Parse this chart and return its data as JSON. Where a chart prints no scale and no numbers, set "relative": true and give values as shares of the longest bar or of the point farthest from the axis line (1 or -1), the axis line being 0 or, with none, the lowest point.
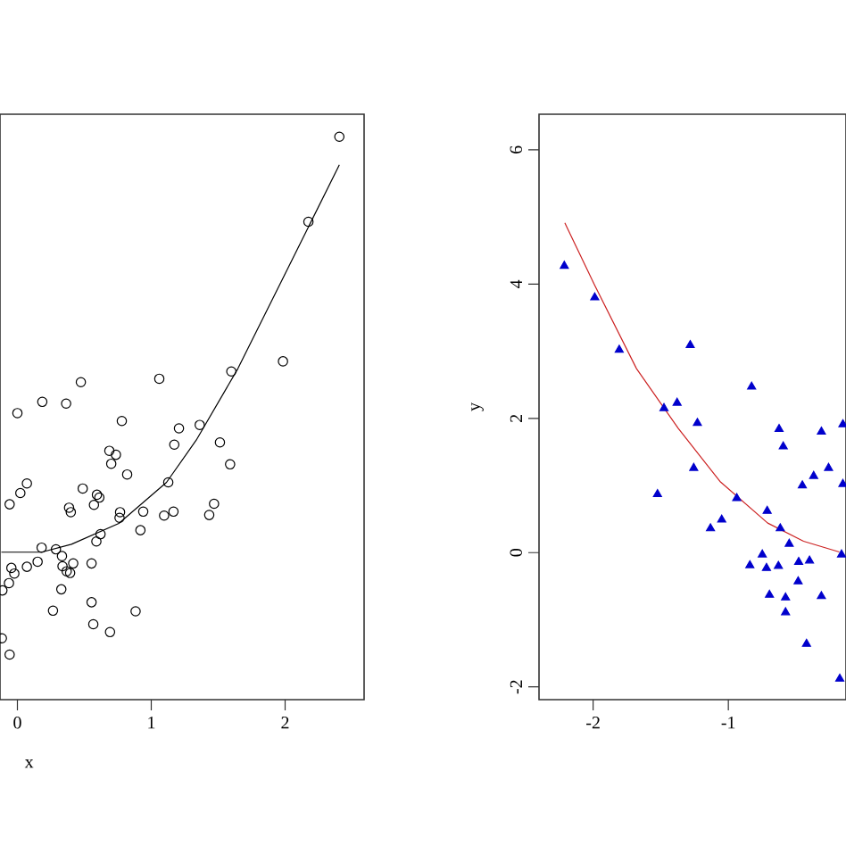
{
  "chart_data": [
    {
      "type": "scatter",
      "relative": true,
      "xlabel": "x",
      "xlim": [
        -0.13,
        2.59
      ],
      "xticks": [
        0,
        1,
        2
      ],
      "tick_labels": "x",
      "series": [
        {
          "marker": "circle",
          "color": "#000000",
          "x": [
            2.405,
            2.174,
            1.984,
            1.598,
            1.06,
            0.474,
            0.186,
            0.364,
            0.0,
            0.78,
            1.362,
            1.207,
            1.172,
            1.513,
            0.687,
            0.736,
            0.701,
            1.589,
            0.82,
            1.127,
            0.071,
            0.022,
            -0.058,
            0.488,
            0.594,
            0.612,
            0.572,
            0.386,
            0.399,
            0.94,
            0.767,
            0.763,
            1.096,
            1.166,
            1.469,
            1.433,
            0.919,
            0.621,
            0.59,
            0.181,
            0.288,
            0.333,
            0.337,
            0.417,
            0.554,
            0.368,
            0.394,
            0.151,
            0.071,
            -0.045,
            -0.023,
            -0.063,
            -0.112,
            0.328,
            0.266,
            0.554,
            0.567,
            0.692,
            0.883,
            -0.116,
            -0.058
          ],
          "values": [
            1.0,
            0.849,
            0.601,
            0.583,
            0.57,
            0.564,
            0.529,
            0.526,
            0.509,
            0.495,
            0.488,
            0.482,
            0.453,
            0.457,
            0.442,
            0.435,
            0.419,
            0.418,
            0.4,
            0.386,
            0.384,
            0.367,
            0.347,
            0.375,
            0.364,
            0.359,
            0.346,
            0.341,
            0.333,
            0.334,
            0.333,
            0.323,
            0.327,
            0.334,
            0.348,
            0.328,
            0.301,
            0.294,
            0.281,
            0.27,
            0.267,
            0.255,
            0.237,
            0.242,
            0.242,
            0.228,
            0.225,
            0.245,
            0.236,
            0.234,
            0.224,
            0.207,
            0.194,
            0.196,
            0.158,
            0.173,
            0.134,
            0.12,
            0.157,
            0.109,
            0.08
          ]
        },
        {
          "type": "line",
          "color": "#000000",
          "x": [
            -0.12,
            0.181,
            0.404,
            0.758,
            1.114,
            1.336,
            1.647,
            1.957,
            2.179,
            2.405
          ],
          "values": [
            0.262,
            0.262,
            0.276,
            0.313,
            0.386,
            0.461,
            0.588,
            0.736,
            0.842,
            0.95
          ]
        }
      ]
    },
    {
      "type": "scatter",
      "ylabel": "y",
      "xlim": [
        -2.4,
        -0.13
      ],
      "ylim": [
        -2.19,
        6.53
      ],
      "xticks": [
        -2,
        -1
      ],
      "yticks": [
        -2,
        0,
        2,
        4,
        6
      ],
      "series": [
        {
          "marker": "triangle",
          "color": "#0000cc",
          "x": [
            -2.213,
            -1.988,
            -1.807,
            -1.282,
            -0.828,
            -1.379,
            -1.476,
            -1.229,
            -0.625,
            -0.312,
            -0.153,
            -0.594,
            -1.256,
            -0.259,
            -0.369,
            -0.453,
            -0.153,
            -1.524,
            -0.938,
            -0.713,
            -1.049,
            -1.132,
            -0.616,
            -0.55,
            -0.163,
            -0.749,
            -0.841,
            -0.718,
            -0.63,
            -0.48,
            -0.4,
            -0.484,
            -0.696,
            -0.577,
            -0.312,
            -0.577,
            -0.422,
            -0.176
          ],
          "values": [
            4.27,
            3.8,
            3.02,
            3.09,
            2.47,
            2.23,
            2.15,
            1.93,
            1.84,
            1.8,
            1.91,
            1.58,
            1.26,
            1.26,
            1.14,
            1.0,
            1.02,
            0.87,
            0.81,
            0.62,
            0.49,
            0.36,
            0.36,
            0.13,
            -0.03,
            -0.03,
            -0.19,
            -0.23,
            -0.2,
            -0.14,
            -0.12,
            -0.43,
            -0.63,
            -0.67,
            -0.65,
            -0.89,
            -1.36,
            -1.88
          ]
        },
        {
          "type": "line",
          "color": "#cc2222",
          "x": [
            -2.209,
            -1.988,
            -1.679,
            -1.37,
            -1.062,
            -0.709,
            -0.444,
            -0.18
          ],
          "values": [
            4.91,
            3.98,
            2.74,
            1.85,
            1.06,
            0.44,
            0.17,
            0.01
          ]
        }
      ]
    }
  ]
}
